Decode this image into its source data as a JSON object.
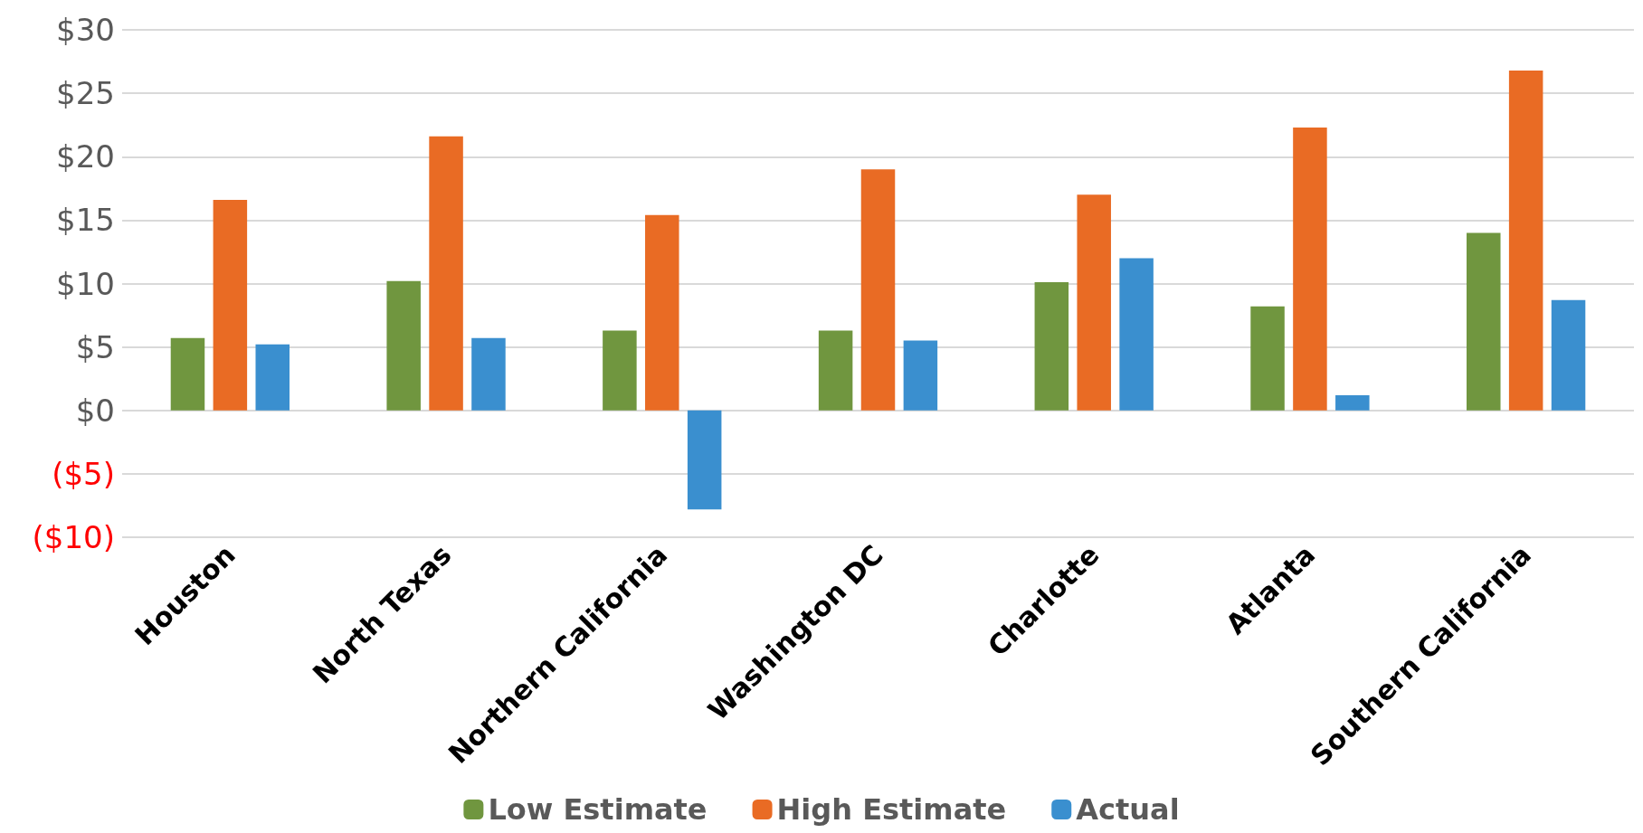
{
  "chart_data": {
    "type": "bar",
    "categories": [
      "Houston",
      "North Texas",
      "Northern California",
      "Washington DC",
      "Charlotte",
      "Atlanta",
      "Southern California"
    ],
    "series": [
      {
        "name": "Low Estimate",
        "color": "#70963f",
        "values": [
          5.7,
          10.2,
          6.3,
          6.3,
          10.1,
          8.2,
          14.0
        ]
      },
      {
        "name": "High Estimate",
        "color": "#e96b24",
        "values": [
          16.6,
          21.6,
          15.4,
          19.0,
          17.0,
          22.3,
          26.8
        ]
      },
      {
        "name": "Actual",
        "color": "#3a8fcf",
        "values": [
          5.2,
          5.7,
          -7.8,
          5.5,
          12.0,
          1.2,
          8.7
        ]
      }
    ],
    "ylim": [
      -10,
      30
    ],
    "yticks": [
      {
        "value": -10,
        "label": "($10)"
      },
      {
        "value": -5,
        "label": "($5)"
      },
      {
        "value": 0,
        "label": "$0"
      },
      {
        "value": 5,
        "label": "$5"
      },
      {
        "value": 10,
        "label": "$10"
      },
      {
        "value": 15,
        "label": "$15"
      },
      {
        "value": 20,
        "label": "$20"
      },
      {
        "value": 25,
        "label": "$25"
      },
      {
        "value": 30,
        "label": "$30"
      }
    ],
    "grid": "y",
    "legend": "bottom"
  }
}
